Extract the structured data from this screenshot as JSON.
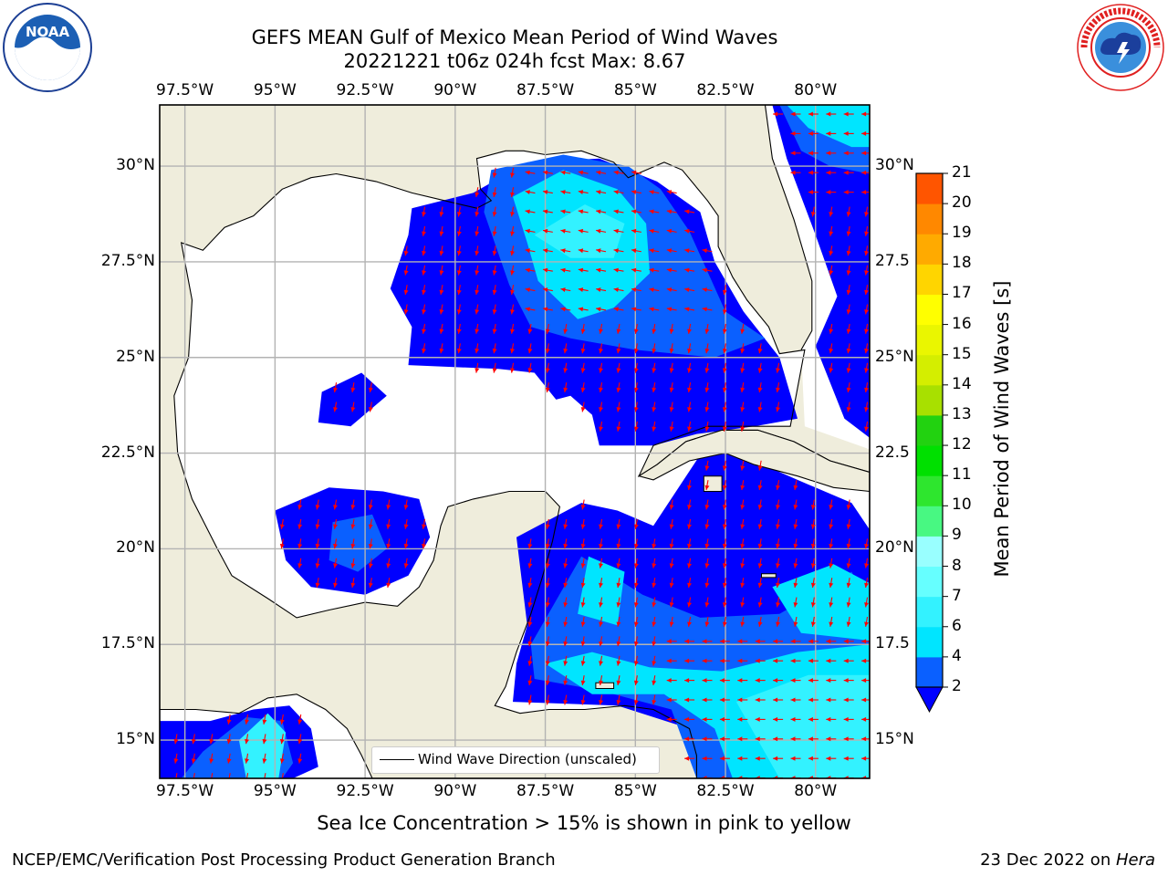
{
  "header": {
    "title_line1": "GEFS MEAN Gulf of Mexico Mean Period of Wind Waves",
    "title_line2": "20221221 t06z 024h fcst   Max: 8.67"
  },
  "logos": {
    "noaa": {
      "text": "NOAA",
      "ring_text": "NATIONAL OCEANIC AND ATMOSPHERIC ADMINISTRATION · U.S. DEPARTMENT OF COMMERCE"
    },
    "nws": {
      "ring_text": "NATIONAL WEATHER SERVICE"
    }
  },
  "map": {
    "lon_ticks": [
      "97.5°W",
      "95°W",
      "92.5°W",
      "90°W",
      "87.5°W",
      "85°W",
      "82.5°W",
      "80°W"
    ],
    "lon_values": [
      -97.5,
      -95,
      -92.5,
      -90,
      -87.5,
      -85,
      -82.5,
      -80
    ],
    "lat_ticks_left": [
      "30°N",
      "27.5°N",
      "25°N",
      "22.5°N",
      "20°N",
      "17.5°N",
      "15°N"
    ],
    "lat_ticks_right": [
      "30°N",
      "27.5",
      "25°N",
      "22.5",
      "20°N",
      "17.5",
      "15°N"
    ],
    "lat_values": [
      30,
      27.5,
      25,
      22.5,
      20,
      17.5,
      15
    ],
    "extent": {
      "lon_min": -98.2,
      "lon_max": -78.5,
      "lat_min": 14.0,
      "lat_max": 31.6
    },
    "legend_label": "Wind Wave Direction (unscaled)",
    "colors": {
      "land": "#efeddc",
      "ocean_nodata": "#ffffff",
      "grid": "#b3b3b3",
      "arrow": "#ff0000",
      "coast": "#000000"
    }
  },
  "colorbar": {
    "label": "Mean Period of Wind Waves [s]",
    "ticks": [
      "2",
      "4",
      "6",
      "7",
      "8",
      "9",
      "10",
      "11",
      "12",
      "13",
      "14",
      "15",
      "16",
      "17",
      "18",
      "19",
      "20",
      "21"
    ],
    "levels": [
      2,
      4,
      6,
      7,
      8,
      9,
      10,
      11,
      12,
      13,
      14,
      15,
      16,
      17,
      18,
      19,
      20,
      21
    ],
    "colors": [
      "#0a60ff",
      "#00e5ff",
      "#33f2ff",
      "#66ffff",
      "#99ffff",
      "#48f882",
      "#2ee62e",
      "#00e000",
      "#22d210",
      "#a8e000",
      "#d4ee00",
      "#eaf600",
      "#ffff00",
      "#ffd500",
      "#ffaa00",
      "#ff8800",
      "#ff5500",
      "#ff2200",
      "#ff0000"
    ],
    "under_color": "#0000ff"
  },
  "chart_data": {
    "type": "heatmap",
    "title": "GEFS MEAN Gulf of Mexico Mean Period of Wind Waves",
    "subtitle": "20221221 t06z 024h fcst   Max: 8.67",
    "variable": "Mean Period of Wind Waves [s]",
    "max_value": 8.67,
    "lon_range": [
      -98.2,
      -78.5
    ],
    "lat_range": [
      14.0,
      31.6
    ],
    "colorbar_range": [
      2,
      21
    ]
  },
  "footer": {
    "sea_ice_note": "Sea Ice Concentration > 15% is shown in pink to yellow",
    "left": "NCEP/EMC/Verification Post Processing Product Generation Branch",
    "right_prefix": "23 Dec 2022 on ",
    "right_machine": "Hera"
  }
}
